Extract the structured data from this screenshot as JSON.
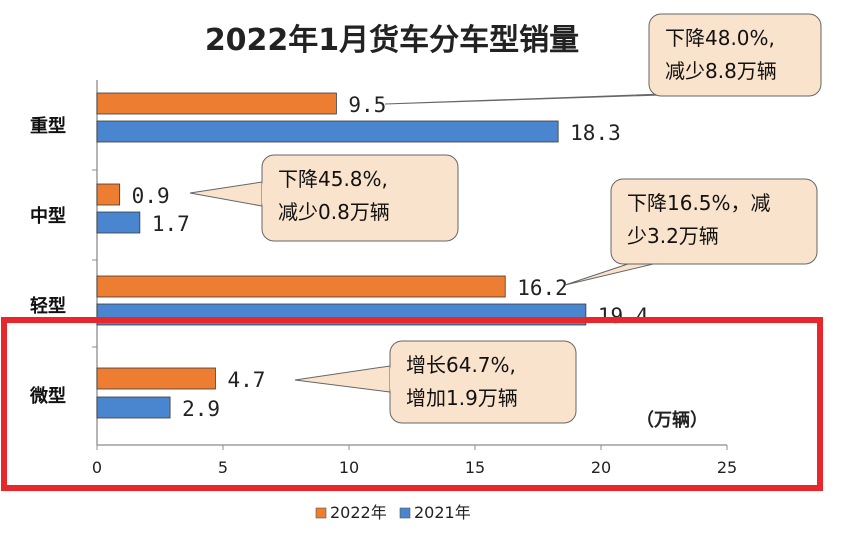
{
  "chart_data": {
    "type": "bar",
    "orientation": "horizontal",
    "title": "2022年1月货车分车型销量",
    "unit": "（万辆）",
    "categories": [
      "重型",
      "中型",
      "轻型",
      "微型"
    ],
    "series": [
      {
        "name": "2022年",
        "color": "#ed7d31",
        "values": [
          9.5,
          0.9,
          16.2,
          4.7
        ],
        "labels": [
          "9.5",
          "0.9",
          "16.2",
          "4.7"
        ]
      },
      {
        "name": "2021年",
        "color": "#4a86d0",
        "values": [
          18.3,
          1.7,
          19.4,
          2.9
        ],
        "labels": [
          "18.3",
          "1.7",
          "19.4",
          "2.9"
        ]
      }
    ],
    "xlim": [
      0,
      25
    ],
    "xticks": [
      "0",
      "5",
      "10",
      "15",
      "20",
      "25"
    ],
    "legend_position": "bottom-left",
    "annotations": [
      {
        "category": "重型",
        "lines": [
          "下降48.0%,",
          "减少8.8万辆"
        ]
      },
      {
        "category": "中型",
        "lines": [
          "下降45.8%,",
          "减少0.8万辆"
        ]
      },
      {
        "category": "轻型",
        "lines": [
          "下降16.5%，减",
          "少3.2万辆"
        ]
      },
      {
        "category": "微型",
        "lines": [
          "增长64.7%,",
          "增加1.9万辆"
        ]
      }
    ],
    "highlight": {
      "category": "微型",
      "color": "#e8262b"
    }
  }
}
